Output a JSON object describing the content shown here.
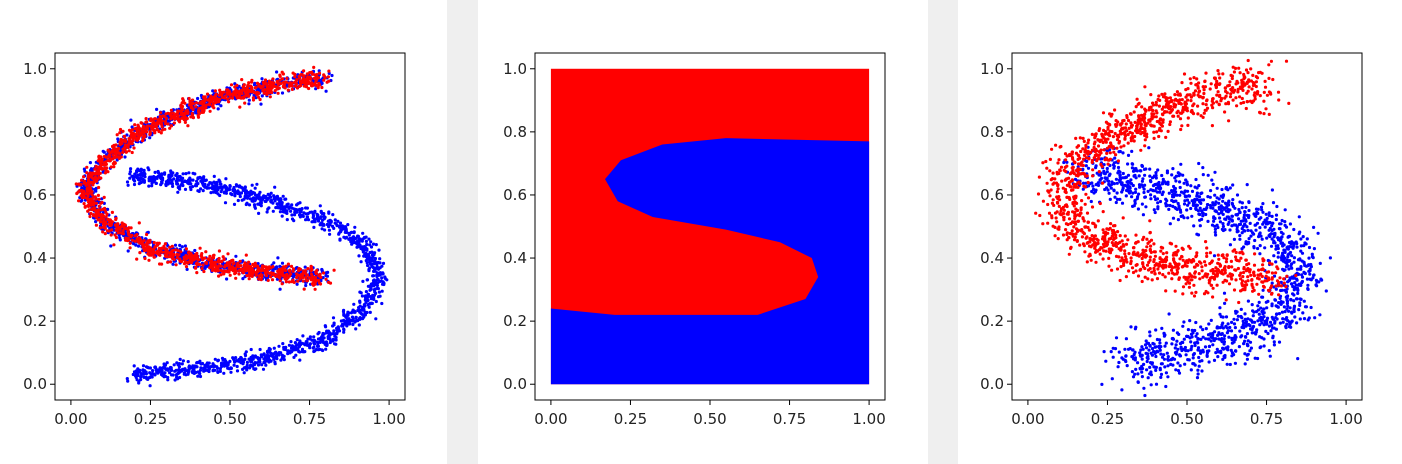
{
  "colors": {
    "red": "#ff0000",
    "blue": "#0000ff",
    "axis": "#000000",
    "separator": "#efefef"
  },
  "chart_data": [
    {
      "type": "scatter",
      "description_series": [
        "blue",
        "red"
      ],
      "xlim": [
        -0.05,
        1.05
      ],
      "ylim": [
        -0.05,
        1.05
      ],
      "xticks": [
        "0.00",
        "0.25",
        "0.50",
        "0.75",
        "1.00"
      ],
      "yticks": [
        "0.0",
        "0.2",
        "0.4",
        "0.6",
        "0.8",
        "1.0"
      ],
      "grid": false,
      "series": [
        {
          "color": "#0000ff",
          "shape": "S-curve",
          "curve": [
            [
              0.8,
              0.97
            ],
            [
              0.65,
              0.95
            ],
            [
              0.5,
              0.92
            ],
            [
              0.35,
              0.86
            ],
            [
              0.22,
              0.8
            ],
            [
              0.1,
              0.7
            ],
            [
              0.04,
              0.62
            ],
            [
              0.1,
              0.52
            ],
            [
              0.25,
              0.43
            ],
            [
              0.45,
              0.38
            ],
            [
              0.65,
              0.35
            ],
            [
              0.8,
              0.34
            ]
          ],
          "spread": 0.013
        },
        {
          "color": "#0000ff",
          "shape": "mirrored-curve",
          "curve": [
            [
              0.18,
              0.66
            ],
            [
              0.4,
              0.64
            ],
            [
              0.6,
              0.59
            ],
            [
              0.8,
              0.52
            ],
            [
              0.92,
              0.44
            ],
            [
              0.97,
              0.35
            ],
            [
              0.92,
              0.24
            ],
            [
              0.8,
              0.14
            ],
            [
              0.6,
              0.08
            ],
            [
              0.4,
              0.05
            ],
            [
              0.2,
              0.03
            ]
          ],
          "spread": 0.014
        },
        {
          "color": "#ff0000",
          "shape": "S-curve-overlay",
          "curve": [
            [
              0.8,
              0.97
            ],
            [
              0.65,
              0.95
            ],
            [
              0.5,
              0.92
            ],
            [
              0.35,
              0.86
            ],
            [
              0.22,
              0.8
            ],
            [
              0.1,
              0.7
            ],
            [
              0.04,
              0.62
            ],
            [
              0.1,
              0.52
            ],
            [
              0.25,
              0.43
            ],
            [
              0.45,
              0.38
            ],
            [
              0.65,
              0.35
            ],
            [
              0.8,
              0.34
            ]
          ],
          "spread": 0.015
        }
      ]
    },
    {
      "type": "heatmap",
      "xlim": [
        -0.05,
        1.05
      ],
      "ylim": [
        -0.05,
        1.05
      ],
      "xticks": [
        "0.00",
        "0.25",
        "0.50",
        "0.75",
        "1.00"
      ],
      "yticks": [
        "0.0",
        "0.2",
        "0.4",
        "0.6",
        "0.8",
        "1.0"
      ],
      "grid": false,
      "domain": [
        0,
        1
      ],
      "background_color": "#ff0000",
      "regions": [
        {
          "color": "#0000ff",
          "boundary": [
            [
              1.0,
              0.77
            ],
            [
              0.55,
              0.78
            ],
            [
              0.35,
              0.76
            ],
            [
              0.22,
              0.71
            ],
            [
              0.17,
              0.65
            ],
            [
              0.21,
              0.58
            ],
            [
              0.32,
              0.53
            ],
            [
              0.55,
              0.49
            ],
            [
              0.72,
              0.45
            ],
            [
              0.82,
              0.4
            ],
            [
              0.84,
              0.34
            ],
            [
              0.8,
              0.27
            ],
            [
              0.65,
              0.22
            ],
            [
              0.4,
              0.22
            ],
            [
              0.2,
              0.22
            ],
            [
              0.0,
              0.24
            ],
            [
              0.0,
              0.0
            ],
            [
              1.0,
              0.0
            ]
          ]
        }
      ]
    },
    {
      "type": "scatter",
      "xlim": [
        -0.05,
        1.05
      ],
      "ylim": [
        -0.05,
        1.05
      ],
      "xticks": [
        "0.00",
        "0.25",
        "0.50",
        "0.75",
        "1.00"
      ],
      "yticks": [
        "0.0",
        "0.2",
        "0.4",
        "0.6",
        "0.8",
        "1.0"
      ],
      "grid": false,
      "series": [
        {
          "color": "#0000ff",
          "shape": "lower-curve",
          "curve": [
            [
              0.18,
              0.68
            ],
            [
              0.35,
              0.64
            ],
            [
              0.55,
              0.58
            ],
            [
              0.7,
              0.52
            ],
            [
              0.82,
              0.45
            ],
            [
              0.86,
              0.36
            ],
            [
              0.82,
              0.26
            ],
            [
              0.72,
              0.18
            ],
            [
              0.58,
              0.12
            ],
            [
              0.45,
              0.1
            ],
            [
              0.3,
              0.07
            ]
          ],
          "spread": 0.04
        },
        {
          "color": "#ff0000",
          "shape": "upper-curve",
          "curve": [
            [
              0.75,
              0.95
            ],
            [
              0.6,
              0.93
            ],
            [
              0.45,
              0.88
            ],
            [
              0.32,
              0.82
            ],
            [
              0.2,
              0.75
            ],
            [
              0.12,
              0.66
            ],
            [
              0.1,
              0.57
            ],
            [
              0.16,
              0.49
            ],
            [
              0.3,
              0.42
            ],
            [
              0.48,
              0.37
            ],
            [
              0.65,
              0.35
            ],
            [
              0.78,
              0.33
            ]
          ],
          "spread": 0.035
        }
      ]
    }
  ]
}
